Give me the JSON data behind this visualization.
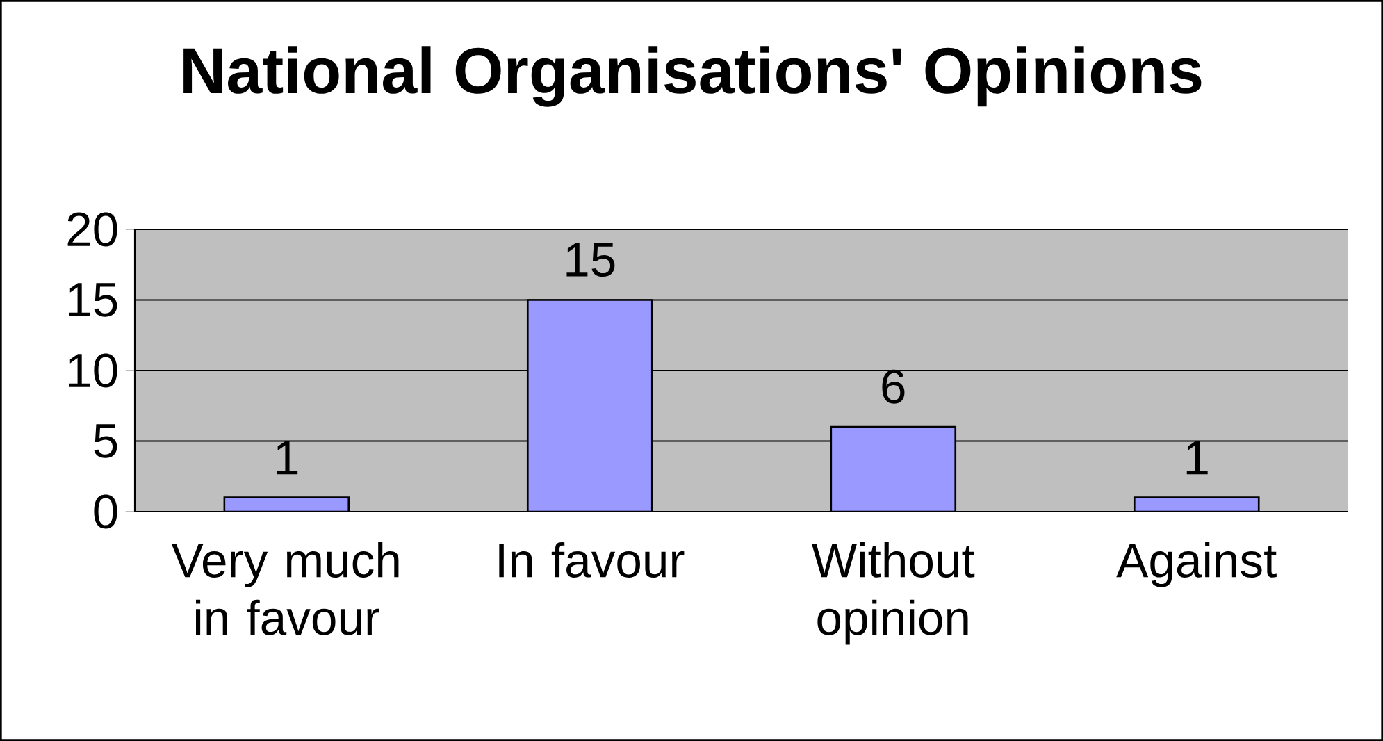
{
  "chart_data": {
    "type": "bar",
    "title": "National Organisations' Opinions",
    "categories": [
      "Very much in favour",
      "In favour",
      "Without opinion",
      "Against"
    ],
    "values": [
      1,
      15,
      6,
      1
    ],
    "color": "#9999ff",
    "ylim": [
      0,
      20
    ],
    "yticks": [
      0,
      5,
      10,
      15,
      20
    ],
    "grid": "y",
    "data_labels": true
  }
}
